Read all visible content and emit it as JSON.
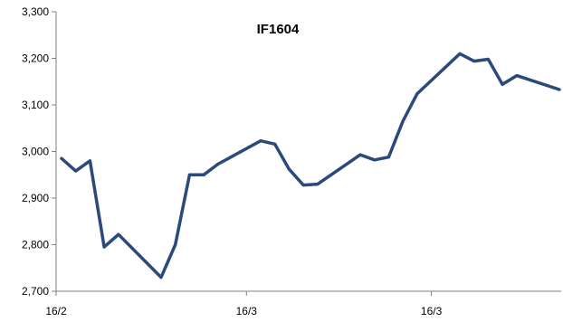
{
  "chart_data": {
    "type": "line",
    "title": "IF1604",
    "xlabel": "",
    "ylabel": "",
    "ylim": [
      2700,
      3300
    ],
    "yticks": [
      "2,700",
      "2,800",
      "2,900",
      "3,000",
      "3,100",
      "3,200",
      "3,300"
    ],
    "xtick_labels": [
      {
        "label": "16/2",
        "index": 0
      },
      {
        "label": "16/3",
        "index": 13
      },
      {
        "label": "16/3",
        "index": 26
      }
    ],
    "grid": false,
    "legend": "none",
    "series": [
      {
        "color": "#2b4a7b",
        "values": [
          2985,
          2958,
          2980,
          2795,
          2822,
          2730,
          2800,
          2950,
          2950,
          2973,
          3023,
          3016,
          2962,
          2928,
          2930,
          2993,
          2982,
          2988,
          3065,
          3124,
          3210,
          3194,
          3198,
          3144,
          3163,
          3133
        ]
      }
    ],
    "x_index": [
      0,
      1,
      2,
      3,
      4,
      7,
      8,
      9,
      10,
      11,
      14,
      15,
      16,
      17,
      18,
      21,
      22,
      23,
      24,
      25,
      28,
      29,
      30,
      31,
      32,
      35
    ]
  }
}
